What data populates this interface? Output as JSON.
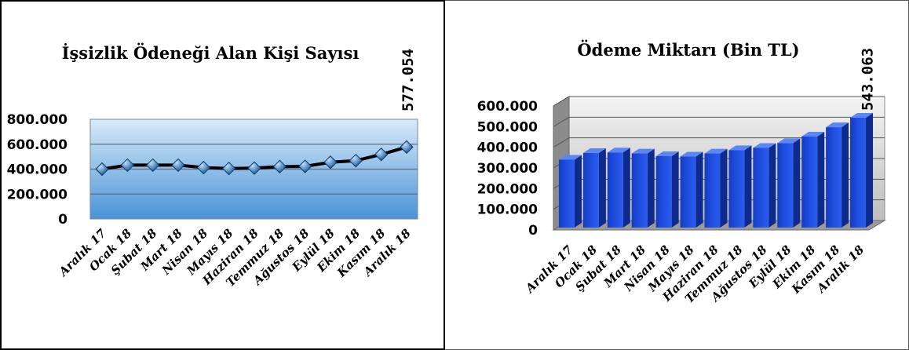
{
  "chart_data": [
    {
      "type": "line",
      "title": "İşsizlik Ödeneği Alan Kişi Sayısı",
      "categories": [
        "Aralık 17",
        "Ocak 18",
        "Şubat 18",
        "Mart 18",
        "Nisan 18",
        "Mayıs 18",
        "Haziran 18",
        "Temmuz 18",
        "Ağustos 18",
        "Eylül 18",
        "Ekim 18",
        "Kasım 18",
        "Aralık 18"
      ],
      "values": [
        400000,
        432000,
        432000,
        432000,
        412000,
        405000,
        408000,
        420000,
        422000,
        455000,
        468000,
        518000,
        577054
      ],
      "yticks": [
        "0",
        "200.000",
        "400.000",
        "600.000",
        "800.000"
      ],
      "ylim": [
        0,
        800000
      ],
      "data_labels": [
        {
          "index": 12,
          "text": "577.054"
        }
      ],
      "grid": true,
      "colors": {
        "line": "#000000",
        "marker": "#3a7fbf",
        "plot_top": "#d8eaf8",
        "plot_bottom": "#4a93d8"
      }
    },
    {
      "type": "bar",
      "title": "Ödeme Miktarı (Bin TL)",
      "categories": [
        "Aralık 17",
        "Ocak 18",
        "Şubat 18",
        "Mart 18",
        "Nisan 18",
        "Mayıs 18",
        "Haziran 18",
        "Temmuz 18",
        "Ağustos 18",
        "Eylül 18",
        "Ekim 18",
        "Kasım 18",
        "Aralık 18"
      ],
      "values": [
        340000,
        372000,
        375000,
        370000,
        357000,
        355000,
        370000,
        386000,
        397000,
        420000,
        452000,
        497000,
        543063
      ],
      "yticks": [
        "0",
        "100.000",
        "200.000",
        "300.000",
        "400.000",
        "500.000",
        "600.000"
      ],
      "ylim": [
        0,
        600000
      ],
      "data_labels": [
        {
          "index": 12,
          "text": "543.063"
        }
      ],
      "grid": true,
      "colors": {
        "bar_front": "#1f4fe0",
        "bar_side": "#0e2a8c",
        "bar_top": "#5c85f5",
        "wall": "#c8c8c8"
      }
    }
  ]
}
